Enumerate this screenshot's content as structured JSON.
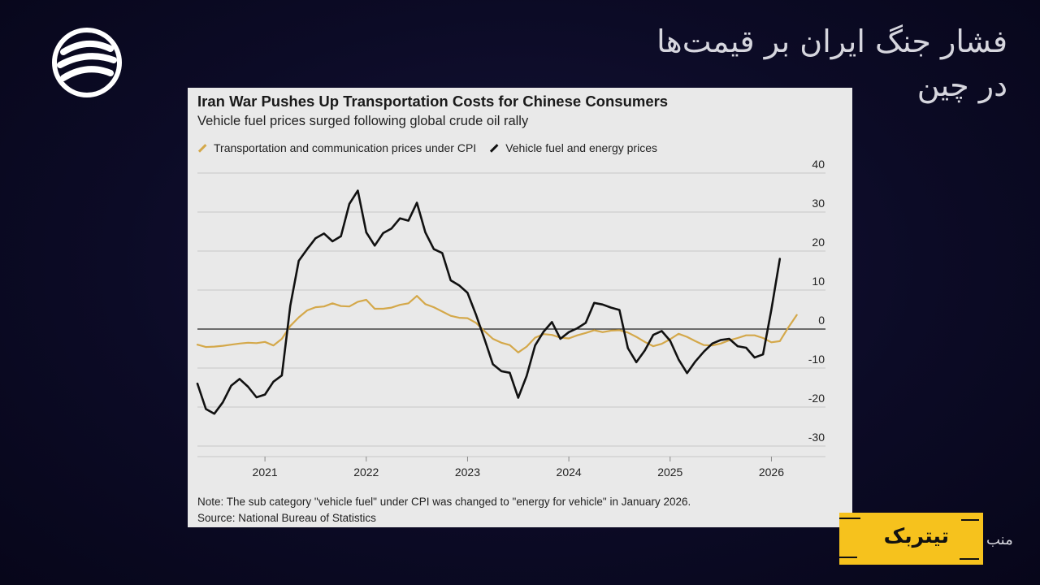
{
  "headline": {
    "line1": "فشار جنگ ایران بر قیمت‌ها",
    "line2": "در چین"
  },
  "brand": {
    "name": "تیتربک",
    "caption": "منب"
  },
  "colors": {
    "cpi_series": "#d4a84a",
    "fuel_series": "#111111",
    "brand_yellow": "#f6c21d",
    "background": "#0c0b26"
  },
  "chart_data": {
    "type": "line",
    "title": "Iran War Pushes Up Transportation Costs for Chinese Consumers",
    "subtitle": "Vehicle fuel prices surged following global crude oil rally",
    "note": "Note: The sub category \"vehicle fuel\" under CPI was changed to \"energy for vehicle\" in January 2026.",
    "source": "Source: National Bureau of Statistics",
    "xlim": [
      "2020-05",
      "2026-05"
    ],
    "ylim": [
      -30,
      40
    ],
    "y_ticks": [
      40,
      30,
      20,
      10,
      0,
      -10,
      -20,
      -30
    ],
    "x_ticks": [
      "2021",
      "2022",
      "2023",
      "2024",
      "2025",
      "2026"
    ],
    "grid": true,
    "legend_position": "top-left",
    "series": [
      {
        "name": "Transportation and communication prices under CPI",
        "color": "#d4a84a",
        "points": [
          [
            "2020-05",
            -4.0
          ],
          [
            "2020-06",
            -4.6
          ],
          [
            "2020-07",
            -4.5
          ],
          [
            "2020-08",
            -4.3
          ],
          [
            "2020-09",
            -4.0
          ],
          [
            "2020-10",
            -3.7
          ],
          [
            "2020-11",
            -3.5
          ],
          [
            "2020-12",
            -3.6
          ],
          [
            "2021-01",
            -3.3
          ],
          [
            "2021-02",
            -4.2
          ],
          [
            "2021-03",
            -2.5
          ],
          [
            "2021-04",
            0.8
          ],
          [
            "2021-05",
            3.0
          ],
          [
            "2021-06",
            4.8
          ],
          [
            "2021-07",
            5.6
          ],
          [
            "2021-08",
            5.8
          ],
          [
            "2021-09",
            6.6
          ],
          [
            "2021-10",
            5.9
          ],
          [
            "2021-11",
            5.8
          ],
          [
            "2021-12",
            7.0
          ],
          [
            "2022-01",
            7.5
          ],
          [
            "2022-02",
            5.2
          ],
          [
            "2022-03",
            5.2
          ],
          [
            "2022-04",
            5.5
          ],
          [
            "2022-05",
            6.2
          ],
          [
            "2022-06",
            6.6
          ],
          [
            "2022-07",
            8.5
          ],
          [
            "2022-08",
            6.4
          ],
          [
            "2022-09",
            5.6
          ],
          [
            "2022-10",
            4.5
          ],
          [
            "2022-11",
            3.4
          ],
          [
            "2022-12",
            2.9
          ],
          [
            "2023-01",
            2.8
          ],
          [
            "2023-02",
            1.6
          ],
          [
            "2023-03",
            -0.5
          ],
          [
            "2023-04",
            -2.5
          ],
          [
            "2023-05",
            -3.5
          ],
          [
            "2023-06",
            -4.1
          ],
          [
            "2023-07",
            -6.0
          ],
          [
            "2023-08",
            -4.5
          ],
          [
            "2023-09",
            -2.2
          ],
          [
            "2023-10",
            -1.3
          ],
          [
            "2023-11",
            -1.5
          ],
          [
            "2023-12",
            -2.2
          ],
          [
            "2024-01",
            -2.4
          ],
          [
            "2024-02",
            -1.6
          ],
          [
            "2024-03",
            -1.0
          ],
          [
            "2024-04",
            -0.3
          ],
          [
            "2024-05",
            -0.8
          ],
          [
            "2024-06",
            -0.4
          ],
          [
            "2024-07",
            -0.3
          ],
          [
            "2024-08",
            -0.9
          ],
          [
            "2024-09",
            -2.0
          ],
          [
            "2024-10",
            -3.3
          ],
          [
            "2024-11",
            -4.4
          ],
          [
            "2024-12",
            -3.8
          ],
          [
            "2025-01",
            -2.6
          ],
          [
            "2025-02",
            -1.2
          ],
          [
            "2025-03",
            -2.0
          ],
          [
            "2025-04",
            -3.1
          ],
          [
            "2025-05",
            -4.1
          ],
          [
            "2025-06",
            -4.2
          ],
          [
            "2025-07",
            -3.7
          ],
          [
            "2025-08",
            -2.9
          ],
          [
            "2025-09",
            -2.3
          ],
          [
            "2025-10",
            -1.6
          ],
          [
            "2025-11",
            -1.6
          ],
          [
            "2025-12",
            -2.3
          ],
          [
            "2026-01",
            -3.4
          ],
          [
            "2026-02",
            -3.1
          ],
          [
            "2026-03",
            0.4
          ],
          [
            "2026-04",
            3.6
          ]
        ]
      },
      {
        "name": "Vehicle fuel and energy prices",
        "color": "#111111",
        "points": [
          [
            "2020-05",
            -14.0
          ],
          [
            "2020-06",
            -20.5
          ],
          [
            "2020-07",
            -21.7
          ],
          [
            "2020-08",
            -18.8
          ],
          [
            "2020-09",
            -14.5
          ],
          [
            "2020-10",
            -12.8
          ],
          [
            "2020-11",
            -14.8
          ],
          [
            "2020-12",
            -17.5
          ],
          [
            "2021-01",
            -16.8
          ],
          [
            "2021-02",
            -13.5
          ],
          [
            "2021-03",
            -11.9
          ],
          [
            "2021-04",
            6.0
          ],
          [
            "2021-05",
            17.5
          ],
          [
            "2021-06",
            20.5
          ],
          [
            "2021-07",
            23.3
          ],
          [
            "2021-08",
            24.5
          ],
          [
            "2021-09",
            22.5
          ],
          [
            "2021-10",
            23.8
          ],
          [
            "2021-11",
            32.1
          ],
          [
            "2021-12",
            35.5
          ],
          [
            "2022-01",
            24.8
          ],
          [
            "2022-02",
            21.4
          ],
          [
            "2022-03",
            24.6
          ],
          [
            "2022-04",
            25.8
          ],
          [
            "2022-05",
            28.4
          ],
          [
            "2022-06",
            27.8
          ],
          [
            "2022-07",
            32.4
          ],
          [
            "2022-08",
            24.8
          ],
          [
            "2022-09",
            20.5
          ],
          [
            "2022-10",
            19.5
          ],
          [
            "2022-11",
            12.5
          ],
          [
            "2022-12",
            11.2
          ],
          [
            "2023-01",
            9.3
          ],
          [
            "2023-02",
            3.7
          ],
          [
            "2023-03",
            -2.5
          ],
          [
            "2023-04",
            -9.0
          ],
          [
            "2023-05",
            -10.8
          ],
          [
            "2023-06",
            -11.2
          ],
          [
            "2023-07",
            -17.6
          ],
          [
            "2023-08",
            -12.0
          ],
          [
            "2023-09",
            -4.2
          ],
          [
            "2023-10",
            -0.7
          ],
          [
            "2023-11",
            1.8
          ],
          [
            "2023-12",
            -2.5
          ],
          [
            "2024-01",
            -0.8
          ],
          [
            "2024-02",
            0.2
          ],
          [
            "2024-03",
            1.6
          ],
          [
            "2024-04",
            6.7
          ],
          [
            "2024-05",
            6.3
          ],
          [
            "2024-06",
            5.5
          ],
          [
            "2024-07",
            4.9
          ],
          [
            "2024-08",
            -4.9
          ],
          [
            "2024-09",
            -8.5
          ],
          [
            "2024-10",
            -5.5
          ],
          [
            "2024-11",
            -1.5
          ],
          [
            "2024-12",
            -0.5
          ],
          [
            "2025-01",
            -3.0
          ],
          [
            "2025-02",
            -7.8
          ],
          [
            "2025-03",
            -11.3
          ],
          [
            "2025-04",
            -8.3
          ],
          [
            "2025-05",
            -5.8
          ],
          [
            "2025-06",
            -3.7
          ],
          [
            "2025-07",
            -2.8
          ],
          [
            "2025-08",
            -2.5
          ],
          [
            "2025-09",
            -4.4
          ],
          [
            "2025-10",
            -4.8
          ],
          [
            "2025-11",
            -7.3
          ],
          [
            "2025-12",
            -6.5
          ],
          [
            "2026-01",
            5.0
          ],
          [
            "2026-02",
            18.0
          ]
        ]
      }
    ]
  }
}
